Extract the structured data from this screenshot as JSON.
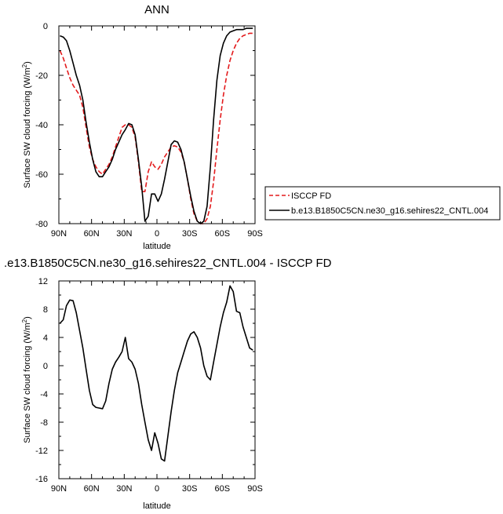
{
  "chart_data": [
    {
      "type": "line",
      "title": "ANN",
      "xlabel": "latitude",
      "ylabel_main": "Surface SW cloud forcing (W/m",
      "ylabel_sup": "2",
      "ylabel_close": ")",
      "xlim": [
        90,
        -90
      ],
      "ylim": [
        -80,
        0
      ],
      "x_ticks": [
        90,
        60,
        30,
        0,
        -30,
        -60,
        -90
      ],
      "x_tick_labels": [
        "90N",
        "60N",
        "30N",
        "0",
        "30S",
        "60S",
        "90S"
      ],
      "y_ticks": [
        0,
        -20,
        -40,
        -60,
        -80
      ],
      "y_tick_labels": [
        "0",
        "-20",
        "-40",
        "-60",
        "-80"
      ],
      "legend_position": "right",
      "series": [
        {
          "name": "ISCCP FD",
          "color": "#e31a1c",
          "dash": "dashed",
          "x": [
            89,
            86,
            83,
            80,
            77,
            74,
            71,
            68,
            65,
            62,
            59,
            56,
            53,
            50,
            47,
            44,
            41,
            38,
            35,
            32,
            29,
            26,
            23,
            20,
            17,
            14,
            11,
            8,
            5,
            2,
            -1,
            -4,
            -7,
            -10,
            -13,
            -16,
            -19,
            -22,
            -25,
            -28,
            -31,
            -34,
            -37,
            -40,
            -43,
            -46,
            -49,
            -52,
            -55,
            -58,
            -61,
            -64,
            -67,
            -70,
            -73,
            -76,
            -79,
            -82,
            -85,
            -88
          ],
          "y": [
            -10,
            -13,
            -17,
            -21,
            -24,
            -26,
            -28,
            -33,
            -41,
            -49,
            -54,
            -57,
            -59,
            -60,
            -58,
            -56,
            -53,
            -49,
            -45,
            -41,
            -40,
            -40,
            -41,
            -45,
            -55,
            -67,
            -67,
            -59,
            -55,
            -57,
            -58,
            -56,
            -53,
            -51,
            -49,
            -48.5,
            -49,
            -51,
            -55,
            -62,
            -70,
            -76,
            -79,
            -80,
            -80,
            -78,
            -73,
            -63,
            -50,
            -38,
            -28,
            -20,
            -14,
            -10,
            -7,
            -5,
            -4,
            -3.5,
            -3,
            -3
          ]
        },
        {
          "name": "b.e13.B1850C5CN.ne30_g16.sehires22_CNTL.004",
          "color": "#000000",
          "dash": "solid",
          "x": [
            89,
            86,
            83,
            80,
            77,
            74,
            71,
            68,
            65,
            62,
            59,
            56,
            53,
            50,
            47,
            44,
            41,
            38,
            35,
            32,
            29,
            26,
            23,
            20,
            17,
            14,
            11,
            8,
            5,
            2,
            -1,
            -4,
            -7,
            -10,
            -13,
            -16,
            -19,
            -22,
            -25,
            -28,
            -31,
            -34,
            -37,
            -40,
            -43,
            -46,
            -49,
            -52,
            -55,
            -58,
            -61,
            -64,
            -67,
            -70,
            -73,
            -76,
            -79,
            -82,
            -85,
            -88
          ],
          "y": [
            -4,
            -4.5,
            -6,
            -10,
            -15,
            -20,
            -24,
            -30,
            -39,
            -47,
            -54,
            -59,
            -61,
            -61,
            -59,
            -57,
            -54,
            -50,
            -47,
            -44,
            -42,
            -39.5,
            -40,
            -44,
            -54,
            -65,
            -79,
            -77,
            -68,
            -68,
            -71,
            -68,
            -62,
            -55,
            -48,
            -46.5,
            -47,
            -50,
            -55,
            -62,
            -69,
            -75,
            -79,
            -80,
            -79,
            -73,
            -57,
            -38,
            -22,
            -12,
            -7,
            -4,
            -2.5,
            -2,
            -1.5,
            -1.5,
            -1.5,
            -1,
            -1,
            -1
          ]
        }
      ]
    },
    {
      "type": "line",
      "title": ".e13.B1850C5CN.ne30_g16.sehires22_CNTL.004 - ISCCP FD",
      "xlabel": "latitude",
      "ylabel_main": "Surface SW cloud forcing (W/m",
      "ylabel_sup": "2",
      "ylabel_close": ")",
      "xlim": [
        90,
        -90
      ],
      "ylim": [
        -16,
        12
      ],
      "x_ticks": [
        90,
        60,
        30,
        0,
        -30,
        -60,
        -90
      ],
      "x_tick_labels": [
        "90N",
        "60N",
        "30N",
        "0",
        "30S",
        "60S",
        "90S"
      ],
      "y_ticks": [
        12,
        8,
        4,
        0,
        -4,
        -8,
        -12,
        -16
      ],
      "y_tick_labels": [
        "12",
        "8",
        "4",
        "0",
        "-4",
        "-8",
        "-12",
        "-16"
      ],
      "series": [
        {
          "color": "#000000",
          "dash": "solid",
          "x": [
            89,
            86,
            83,
            80,
            77,
            74,
            71,
            68,
            65,
            62,
            59,
            56,
            53,
            50,
            47,
            44,
            41,
            38,
            35,
            32,
            29,
            26,
            23,
            20,
            17,
            14,
            11,
            8,
            5,
            2,
            -1,
            -4,
            -7,
            -10,
            -13,
            -16,
            -19,
            -22,
            -25,
            -28,
            -31,
            -34,
            -37,
            -40,
            -43,
            -46,
            -49,
            -52,
            -55,
            -58,
            -61,
            -64,
            -67,
            -70,
            -73,
            -76,
            -79,
            -82,
            -85,
            -88
          ],
          "y": [
            6,
            6.5,
            8.5,
            9.3,
            9.2,
            7.5,
            5,
            2.5,
            -0.5,
            -3.5,
            -5.5,
            -5.9,
            -6,
            -6.1,
            -5,
            -2.5,
            -0.5,
            0.5,
            1.2,
            2,
            4,
            1,
            0.5,
            -0.5,
            -2.5,
            -5.5,
            -8,
            -10.5,
            -12,
            -9.5,
            -11,
            -13.2,
            -13.5,
            -10,
            -6.5,
            -3.5,
            -1,
            0.5,
            2,
            3.5,
            4.5,
            4.8,
            4,
            2.5,
            0,
            -1.5,
            -2,
            0.5,
            3,
            5.5,
            7.5,
            9,
            11.3,
            10.5,
            7.7,
            7.5,
            5.5,
            4,
            2.5,
            2.2
          ]
        }
      ]
    }
  ]
}
